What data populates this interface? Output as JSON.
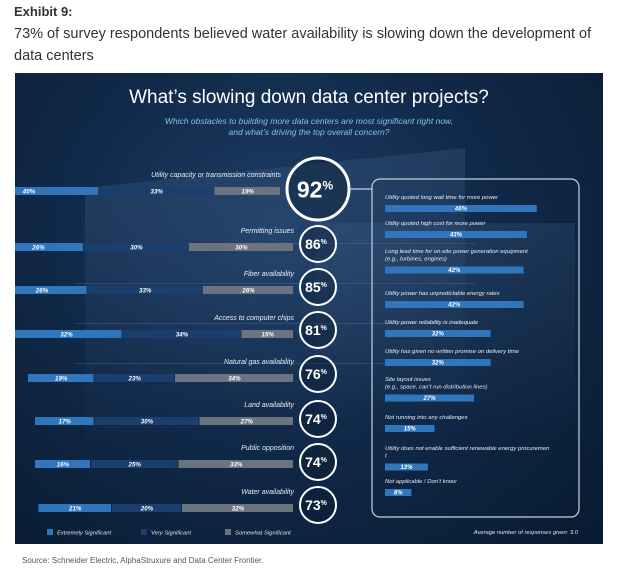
{
  "header": {
    "exhibit": "Exhibit 9:",
    "headline": "73% of survey respondents believed water availability is slowing down the development of data centers"
  },
  "footer": {
    "source": "Source: Schneider Electric, AlphaStruxure and Data Center Frontier."
  },
  "colors": {
    "extremely": "#2f76bd",
    "very": "#1a3f6e",
    "somewhat": "#6b7380",
    "ring": "#ffffff",
    "right_bar": "#2f76bd",
    "right_box": "#c8d2de"
  },
  "chart_data": [
    {
      "type": "bar",
      "orientation": "horizontal-stacked",
      "title": "What’s slowing down data center projects?",
      "subtitle_lines": [
        "Which obstacles to building more data centers are most significant right now,",
        "and what’s driving the top overall concern?"
      ],
      "categories": [
        "Utility capacity or transmission constraints",
        "Permitting issues",
        "Fiber availability",
        "Access to computer chips",
        "Natural gas availability",
        "Land availability",
        "Public opposition",
        "Water availability"
      ],
      "series": [
        {
          "name": "Extremely Significant",
          "values": [
            40,
            26,
            26,
            32,
            19,
            17,
            16,
            21
          ]
        },
        {
          "name": "Very Significant",
          "values": [
            33,
            30,
            33,
            34,
            23,
            30,
            25,
            20
          ]
        },
        {
          "name": "Somewhat Significant",
          "values": [
            19,
            30,
            26,
            15,
            34,
            27,
            33,
            32
          ]
        }
      ],
      "totals": [
        92,
        86,
        85,
        81,
        76,
        74,
        74,
        73
      ],
      "value_suffix": "%",
      "legend_position": "bottom-left"
    },
    {
      "type": "bar",
      "orientation": "horizontal",
      "categories": [
        "Utility quoted long wait time for more power",
        "Utility quoted high cost for more power",
        "Long lead time for on-site power generation equipment (e.g., turbines, engines)",
        "Utility power has unpredictable energy rates",
        "Utility power reliability is inadequate",
        "Utility has given no written promise on delivery time",
        "Site layout issues (e.g., space, can’t run distribution lines)",
        "Not running into any challenges",
        "Utility does not enable sufficient renewable energy procurement",
        "Not applicable / Don’t know"
      ],
      "values": [
        46,
        43,
        42,
        42,
        32,
        32,
        27,
        15,
        13,
        8
      ],
      "value_suffix": "%",
      "note": "Average number of responses given: 3.0"
    }
  ]
}
